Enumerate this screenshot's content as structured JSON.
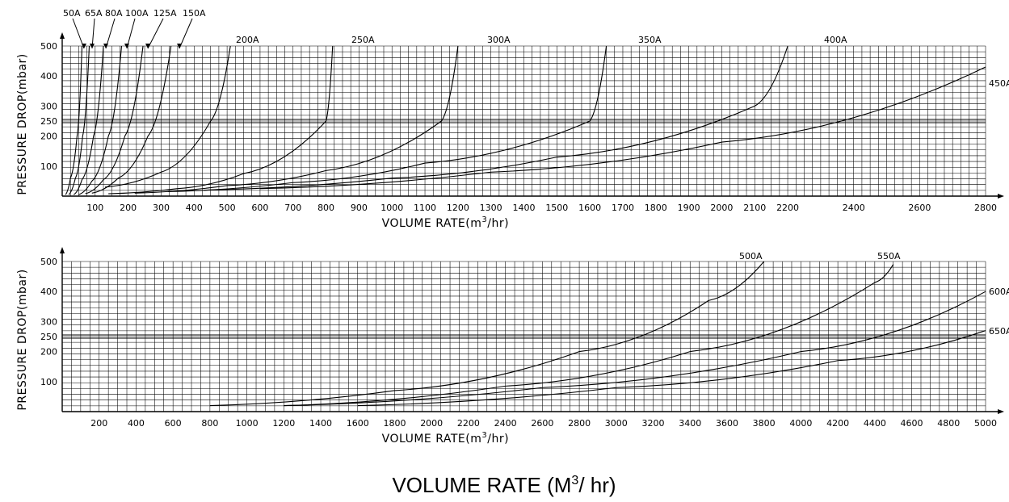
{
  "bottom_caption": {
    "main": "VOLUME RATE",
    "open": " (M",
    "exp": "3",
    "close": "/ hr)"
  },
  "colors": {
    "ink": "#000000",
    "paper": "#ffffff"
  },
  "chart_data": [
    {
      "type": "line",
      "title": "",
      "xlabel": {
        "main": "VOLUME RATE(m",
        "exp": "3",
        "tail": "/hr)"
      },
      "ylabel": "PRESSURE DROP(mbar)",
      "xlim": [
        0,
        2800
      ],
      "ylim": [
        0,
        500
      ],
      "grid": true,
      "x_ticks": [
        100,
        200,
        300,
        400,
        500,
        600,
        700,
        800,
        900,
        1000,
        1100,
        1200,
        1300,
        1400,
        1500,
        1600,
        1700,
        1800,
        1900,
        2000,
        2100,
        2200,
        2400,
        2600,
        2800
      ],
      "y_ticks": [
        100,
        200,
        250,
        300,
        400,
        500
      ],
      "reference_lines_y": [
        250
      ],
      "series": [
        {
          "name": "50A",
          "points": [
            [
              10,
              5
            ],
            [
              25,
              60
            ],
            [
              45,
              200
            ],
            [
              60,
              500
            ]
          ]
        },
        {
          "name": "65A",
          "points": [
            [
              20,
              5
            ],
            [
              40,
              60
            ],
            [
              62,
              200
            ],
            [
              82,
              500
            ]
          ]
        },
        {
          "name": "80A",
          "points": [
            [
              35,
              5
            ],
            [
              60,
              55
            ],
            [
              95,
              200
            ],
            [
              125,
              500
            ]
          ]
        },
        {
          "name": "100A",
          "points": [
            [
              50,
              5
            ],
            [
              90,
              50
            ],
            [
              140,
              200
            ],
            [
              180,
              500
            ]
          ]
        },
        {
          "name": "125A",
          "points": [
            [
              70,
              8
            ],
            [
              125,
              55
            ],
            [
              190,
              200
            ],
            [
              245,
              500
            ]
          ]
        },
        {
          "name": "150A",
          "points": [
            [
              90,
              10
            ],
            [
              170,
              60
            ],
            [
              260,
              200
            ],
            [
              330,
              500
            ]
          ]
        },
        {
          "name": "200A",
          "points": [
            [
              130,
              30
            ],
            [
              300,
              80
            ],
            [
              450,
              250
            ],
            [
              510,
              500
            ]
          ]
        },
        {
          "name": "250A",
          "points": [
            [
              140,
              8
            ],
            [
              350,
              25
            ],
            [
              550,
              75
            ],
            [
              800,
              250
            ],
            [
              820,
              500
            ]
          ]
        },
        {
          "name": "300A",
          "points": [
            [
              220,
              10
            ],
            [
              500,
              35
            ],
            [
              800,
              85
            ],
            [
              1150,
              250
            ],
            [
              1200,
              500
            ]
          ]
        },
        {
          "name": "350A",
          "points": [
            [
              320,
              15
            ],
            [
              700,
              45
            ],
            [
              1100,
              110
            ],
            [
              1600,
              250
            ],
            [
              1650,
              500
            ]
          ]
        },
        {
          "name": "400A",
          "points": [
            [
              430,
              20
            ],
            [
              1000,
              60
            ],
            [
              1500,
              130
            ],
            [
              2100,
              300
            ],
            [
              2200,
              500
            ]
          ]
        },
        {
          "name": "450A",
          "points": [
            [
              600,
              25
            ],
            [
              1300,
              80
            ],
            [
              2000,
              180
            ],
            [
              2800,
              430
            ]
          ]
        }
      ]
    },
    {
      "type": "line",
      "title": "",
      "xlabel": {
        "main": "VOLUME RATE(m",
        "exp": "3",
        "tail": "/hr)"
      },
      "ylabel": "PRESSURE DROP(mbar)",
      "xlim": [
        0,
        5000
      ],
      "ylim": [
        0,
        500
      ],
      "grid": true,
      "x_ticks": [
        200,
        400,
        600,
        800,
        1000,
        1200,
        1400,
        1600,
        1800,
        2000,
        2200,
        2400,
        2600,
        2800,
        3000,
        3200,
        3400,
        3600,
        3800,
        4000,
        4200,
        4400,
        4600,
        4800,
        5000
      ],
      "y_ticks": [
        100,
        200,
        250,
        300,
        400,
        500
      ],
      "reference_lines_y": [
        250
      ],
      "series": [
        {
          "name": "500A",
          "points": [
            [
              800,
              20
            ],
            [
              1800,
              70
            ],
            [
              2800,
              200
            ],
            [
              3500,
              370
            ],
            [
              3800,
              500
            ]
          ]
        },
        {
          "name": "550A",
          "points": [
            [
              1200,
              20
            ],
            [
              2400,
              85
            ],
            [
              3400,
              200
            ],
            [
              4400,
              430
            ],
            [
              4500,
              490
            ]
          ]
        },
        {
          "name": "600A",
          "points": [
            [
              1200,
              20
            ],
            [
              2600,
              80
            ],
            [
              4000,
              200
            ],
            [
              5000,
              400
            ]
          ]
        },
        {
          "name": "650A",
          "points": [
            [
              1600,
              20
            ],
            [
              3000,
              80
            ],
            [
              4200,
              170
            ],
            [
              5000,
              270
            ]
          ]
        }
      ]
    }
  ]
}
